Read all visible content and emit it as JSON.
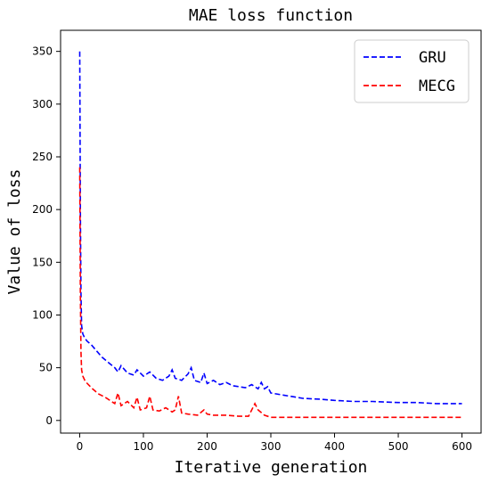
{
  "chart_data": {
    "type": "line",
    "title": "MAE loss function",
    "xlabel": "Iterative generation",
    "ylabel": "Value of loss",
    "xlim": [
      -30,
      630
    ],
    "ylim": [
      -12,
      370
    ],
    "xticks": [
      0,
      100,
      200,
      300,
      400,
      500,
      600
    ],
    "yticks": [
      0,
      50,
      100,
      150,
      200,
      250,
      300,
      350
    ],
    "grid": false,
    "legend": "top-right",
    "series": [
      {
        "name": "GRU",
        "color": "#0000ff",
        "linestyle": "dashed",
        "x": [
          0,
          1,
          2,
          3,
          5,
          8,
          12,
          18,
          25,
          35,
          45,
          55,
          60,
          65,
          75,
          85,
          90,
          100,
          110,
          120,
          130,
          140,
          145,
          150,
          160,
          170,
          175,
          180,
          190,
          195,
          200,
          210,
          220,
          230,
          240,
          250,
          260,
          270,
          280,
          285,
          290,
          295,
          300,
          320,
          350,
          380,
          400,
          430,
          460,
          500,
          530,
          560,
          580,
          600
        ],
        "values": [
          350,
          200,
          120,
          90,
          82,
          78,
          75,
          72,
          67,
          60,
          55,
          50,
          46,
          52,
          45,
          43,
          48,
          42,
          46,
          40,
          38,
          42,
          48,
          40,
          38,
          44,
          50,
          38,
          36,
          45,
          35,
          38,
          34,
          36,
          33,
          32,
          31,
          34,
          30,
          36,
          30,
          32,
          26,
          24,
          21,
          20,
          19,
          18,
          18,
          17,
          17,
          16,
          16,
          16
        ]
      },
      {
        "name": "MECG",
        "color": "#ff0000",
        "linestyle": "dashed",
        "x": [
          0,
          1,
          2,
          3,
          5,
          8,
          12,
          20,
          30,
          40,
          50,
          55,
          60,
          65,
          75,
          85,
          90,
          95,
          105,
          110,
          115,
          125,
          135,
          145,
          150,
          155,
          160,
          170,
          185,
          195,
          200,
          210,
          230,
          250,
          265,
          275,
          280,
          290,
          300,
          350,
          400,
          450,
          500,
          550,
          600
        ],
        "values": [
          240,
          120,
          65,
          48,
          42,
          38,
          35,
          30,
          25,
          22,
          18,
          16,
          26,
          14,
          18,
          12,
          22,
          10,
          12,
          23,
          10,
          9,
          12,
          8,
          10,
          23,
          7,
          6,
          5,
          10,
          6,
          5,
          5,
          4,
          4,
          16,
          10,
          5,
          3,
          3,
          3,
          3,
          3,
          3,
          3
        ]
      }
    ]
  }
}
